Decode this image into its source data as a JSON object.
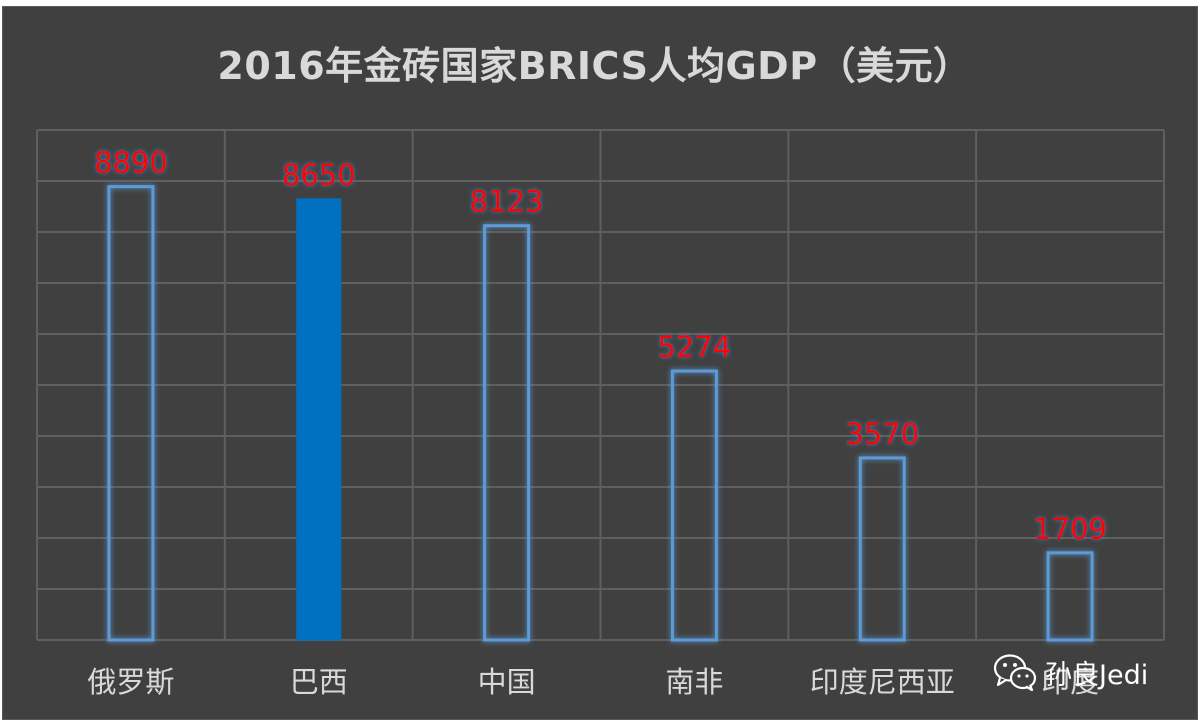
{
  "chart_data": {
    "type": "bar",
    "title": "2016年金砖国家BRICS人均GDP（美元）",
    "categories": [
      "俄罗斯",
      "巴西",
      "中国",
      "南非",
      "印度尼西亚",
      "印度"
    ],
    "values": [
      8890,
      8650,
      8123,
      5274,
      3570,
      1709
    ],
    "highlight_index": 1,
    "ylim": [
      0,
      10000
    ],
    "grid": true,
    "data_labels": true,
    "colors": {
      "background": "#404040",
      "gridline": "#5f5f5f",
      "bar_outline": "#5b9bd5",
      "bar_highlight_fill": "#0070c0",
      "data_label": "#ff0000",
      "category_label": "#d9d9d9",
      "title": "#d9d9d9"
    }
  },
  "watermark": {
    "text": "孙良Jedi",
    "icon": "wechat-icon"
  }
}
